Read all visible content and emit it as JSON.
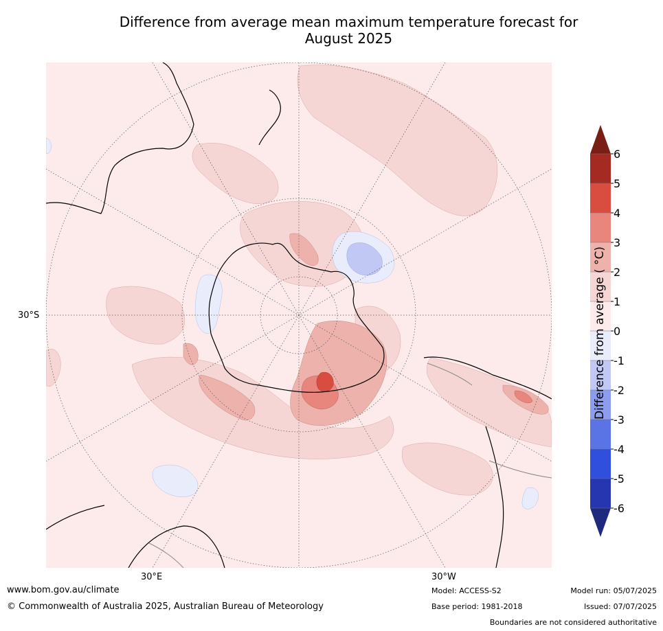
{
  "title_line1": "Difference from average mean maximum temperature forecast for",
  "title_line2": "August 2025",
  "map": {
    "projection": "south-polar-stereographic",
    "lat_label": "30°S",
    "lon_labels": [
      "30°E",
      "30°W"
    ]
  },
  "colorbar": {
    "label": "Difference from average ( °C)",
    "ticks": [
      "6",
      "5",
      "4",
      "3",
      "2",
      "1",
      "0",
      "-1",
      "-2",
      "-3",
      "-4",
      "-5",
      "-6"
    ],
    "colors_top_to_bottom": [
      "#a52a22",
      "#d94c40",
      "#e8867d",
      "#eeb2ac",
      "#f5d6d4",
      "#fcebea",
      "#e9ecfa",
      "#c0c8f3",
      "#8d9dee",
      "#5b74e5",
      "#2f4fdc",
      "#2636b0"
    ],
    "extend_max_color": "#7a1d17",
    "extend_min_color": "#1d2a80"
  },
  "footer": {
    "website": "www.bom.gov.au/climate",
    "copyright": "© Commonwealth of Australia 2025, Australian Bureau of Meteorology",
    "model": "Model: ACCESS-S2",
    "base_period": "Base period: 1981-2018",
    "model_run": "Model run: 05/07/2025",
    "issued": "Issued: 07/07/2025",
    "disclaimer": "Boundaries are not considered authoritative"
  }
}
